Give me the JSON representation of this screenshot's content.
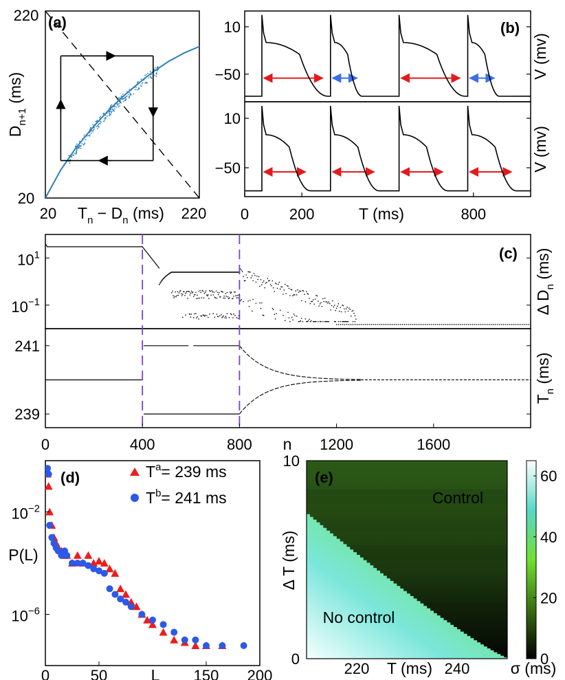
{
  "chart_data": [
    {
      "panel": "a",
      "type": "scatter",
      "panel_label": "(a)",
      "xlabel": "T",
      "xlabel_sub": "n",
      "xlabel_rest": " − D",
      "xlabel_sub2": "n",
      "xlabel_unit": " (ms)",
      "ylabel": "D",
      "ylabel_sub": "n+1",
      "ylabel_unit": " (ms)",
      "xlim": [
        20,
        220
      ],
      "ylim": [
        20,
        220
      ],
      "xtick_labels": [
        "20",
        "220"
      ],
      "ytick_labels": [
        "220",
        "20"
      ],
      "curve_color": "#2e7fb8",
      "restitution_curve": {
        "x": [
          20,
          40,
          60,
          80,
          100,
          120,
          140,
          160,
          180,
          200,
          220
        ],
        "y": [
          20,
          50,
          74,
          94,
          112,
          128,
          142,
          155,
          166,
          175,
          182
        ]
      },
      "diagonal_line": {
        "x": [
          20,
          220
        ],
        "y": [
          220,
          20
        ],
        "style": "dashed"
      },
      "cycle_box": {
        "x": [
          40,
          160
        ],
        "y": [
          60,
          172
        ]
      }
    },
    {
      "panel": "b",
      "type": "line",
      "panel_label": "(b)",
      "xlabel": "T (ms)",
      "ylabel_top": "V (mv)",
      "ylabel_bottom": "V (mv)",
      "xlim": [
        0,
        1000
      ],
      "ylim": [
        -85,
        30
      ],
      "xticks": [
        0,
        200,
        800
      ],
      "xtick_labels": [
        "0",
        "200",
        "800"
      ],
      "yticks": [
        10,
        -50
      ],
      "ytick_labels_top": [
        "10",
        "−50"
      ],
      "ytick_labels_bottom": [
        "10",
        "−50"
      ],
      "top_series": {
        "onsets": [
          60,
          300,
          540,
          780
        ],
        "apd": [
          220,
          100,
          220,
          100
        ],
        "arrow_colors": [
          "#e31a1c",
          "#3a6fe8",
          "#e31a1c",
          "#3a6fe8"
        ]
      },
      "bottom_series": {
        "onsets": [
          60,
          300,
          540,
          780
        ],
        "apd": [
          160,
          160,
          160,
          160
        ],
        "arrow_colors": [
          "#e31a1c",
          "#e31a1c",
          "#e31a1c",
          "#e31a1c"
        ]
      }
    },
    {
      "panel": "c",
      "type": "scatter",
      "panel_label": "(c)",
      "xlabel": "n",
      "xlim": [
        0,
        2000
      ],
      "xticks": [
        0,
        400,
        800,
        1200,
        1600
      ],
      "xtick_labels": [
        "0",
        "400",
        "800",
        "1200",
        "1600"
      ],
      "top_ylabel": "Δ D",
      "top_ylabel_sub": "n",
      "top_ylabel_unit": " (ms)",
      "top_yscale": "log",
      "top_ylim": [
        0.01,
        100
      ],
      "top_yticks": [
        10,
        0.1
      ],
      "top_ytick_labels_base": [
        "10",
        "10"
      ],
      "top_ytick_labels_exp": [
        "1",
        "−1"
      ],
      "bottom_ylabel": "T",
      "bottom_ylabel_sub": "n",
      "bottom_ylabel_unit": " (ms)",
      "bottom_ylim": [
        238.6,
        241.5
      ],
      "bottom_yticks": [
        241,
        239
      ],
      "bottom_ytick_labels": [
        "241",
        "239"
      ],
      "vlines": [
        400,
        800
      ],
      "vline_color": "#7a3fc8",
      "delta_D_levels": {
        "before_control": 30,
        "during_control": [
          2.5,
          0.3
        ],
        "after_control": 0.015
      },
      "T_levels": {
        "before_control": 240,
        "during_control": [
          241,
          239
        ],
        "after_control": 240
      }
    },
    {
      "panel": "d",
      "type": "scatter",
      "panel_label": "(d)",
      "xlabel": "L",
      "ylabel": "P(L)",
      "xlim": [
        0,
        200
      ],
      "xticks": [
        0,
        50,
        150,
        200
      ],
      "xtick_labels": [
        "0",
        "50",
        "150",
        "200"
      ],
      "yscale": "log",
      "ylim": [
        1e-08,
        1
      ],
      "yticks": [
        0.01,
        1e-06
      ],
      "ytick_labels_base": [
        "10",
        "10"
      ],
      "ytick_labels_exp": [
        "−2",
        "−6"
      ],
      "series": [
        {
          "name_base": "T",
          "name_sup": "a",
          "name_rest": "= 239 ms",
          "color": "#ee1c1c",
          "marker": "triangle",
          "x": [
            2,
            3,
            4,
            6,
            8,
            10,
            12,
            15,
            18,
            20,
            25,
            30,
            35,
            40,
            45,
            50,
            55,
            60,
            65,
            70,
            75,
            80,
            85,
            90,
            95,
            100,
            110,
            120,
            130,
            140,
            150,
            165
          ],
          "y": [
            0.3,
            0.1,
            0.01,
            0.003,
            0.001,
            0.0006,
            0.0004,
            0.0003,
            0.0002,
            0.0002,
            0.0001,
            0.0002,
            0.0001,
            0.0002,
            0.0001,
            0.00012,
            0.0001,
            6e-05,
            4e-05,
            1e-05,
            6e-06,
            3e-06,
            2e-06,
            1e-06,
            6e-07,
            4e-07,
            2e-07,
            1e-07,
            8e-08,
            6e-08,
            6e-08,
            6e-08
          ]
        },
        {
          "name_base": "T",
          "name_sup": "b",
          "name_rest": "= 241 ms",
          "color": "#2b59e8",
          "marker": "circle",
          "x": [
            2,
            3,
            4,
            6,
            8,
            10,
            12,
            15,
            18,
            20,
            25,
            30,
            35,
            40,
            45,
            50,
            55,
            60,
            65,
            70,
            75,
            80,
            90,
            100,
            110,
            120,
            130,
            140,
            150,
            165,
            185
          ],
          "y": [
            0.5,
            0.3,
            0.003,
            0.001,
            0.0006,
            0.0004,
            0.0003,
            0.0002,
            0.0003,
            0.0002,
            0.0001,
            0.0001,
            0.0001,
            8e-05,
            6e-05,
            5e-05,
            4e-05,
            1e-05,
            6e-06,
            4e-06,
            3e-06,
            2e-06,
            1e-06,
            6e-07,
            4e-07,
            2e-07,
            1e-07,
            1e-07,
            6e-08,
            6e-08,
            6e-08
          ]
        }
      ]
    },
    {
      "panel": "e",
      "type": "heatmap",
      "panel_label": "(e)",
      "xlabel": "T (ms)",
      "ylabel": "Δ T (ms)",
      "xlim": [
        210,
        250
      ],
      "ylim": [
        0,
        10
      ],
      "xticks": [
        220,
        240
      ],
      "xtick_labels": [
        "220",
        "240"
      ],
      "yticks": [
        0,
        10
      ],
      "ytick_labels": [
        "0",
        "10"
      ],
      "annotation_control": "Control",
      "annotation_no_control": "No control",
      "colorbar_label": "σ (ms)",
      "colorbar_ticks": [
        0,
        20,
        40,
        60
      ],
      "colorbar_tick_labels": [
        "0",
        "20",
        "40",
        "60"
      ],
      "colorbar_range": [
        0,
        65
      ],
      "boundary": {
        "T": [
          210,
          250
        ],
        "deltaT": [
          7.3,
          0
        ]
      }
    }
  ]
}
